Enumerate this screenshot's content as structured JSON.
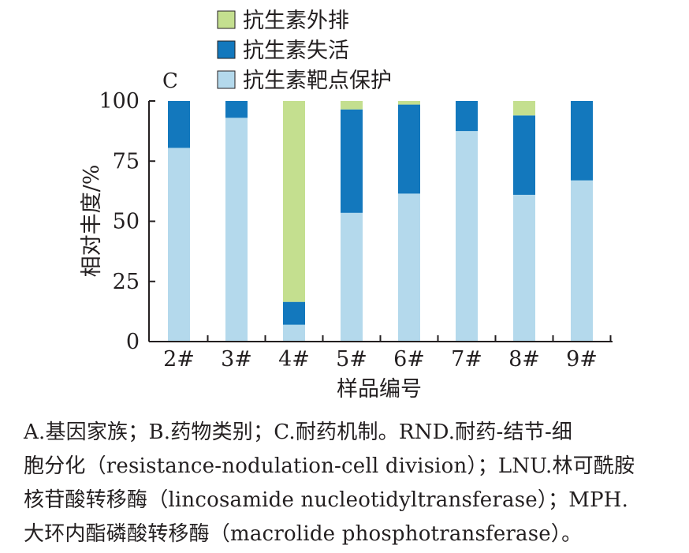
{
  "chart_data": {
    "type": "bar",
    "stacked": true,
    "panel_label": "C",
    "ylabel": "相对丰度/%",
    "xlabel": "样品编号",
    "ylim": [
      0,
      100
    ],
    "yticks": [
      0,
      25,
      50,
      75,
      100
    ],
    "categories": [
      "2#",
      "3#",
      "4#",
      "5#",
      "6#",
      "7#",
      "8#",
      "9#"
    ],
    "legend_position": "top",
    "series": [
      {
        "name": "抗生素靶点保护",
        "color": "#b4d9ec",
        "values": [
          80.5,
          93,
          7,
          53.5,
          61.5,
          87.5,
          61,
          67
        ]
      },
      {
        "name": "抗生素失活",
        "color": "#1378bd",
        "values": [
          19.5,
          7,
          9.5,
          43,
          37,
          12.5,
          33,
          33
        ]
      },
      {
        "name": "抗生素外排",
        "color": "#c4df8f",
        "values": [
          0,
          0,
          83.5,
          3.5,
          1.5,
          0,
          6,
          0
        ]
      }
    ],
    "legend_order": [
      "抗生素外排",
      "抗生素失活",
      "抗生素靶点保护"
    ]
  },
  "caption": {
    "lines": [
      "A.基因家族；B.药物类别；C.耐药机制。RND.耐药-结节-细",
      "胞分化（resistance-nodulation-cell division）；LNU.林可酰胺",
      "核苷酸转移酶（lincosamide nucleotidyltransferase）；MPH.",
      "大环内酯磷酸转移酶（macrolide phosphotransferase）。"
    ]
  }
}
